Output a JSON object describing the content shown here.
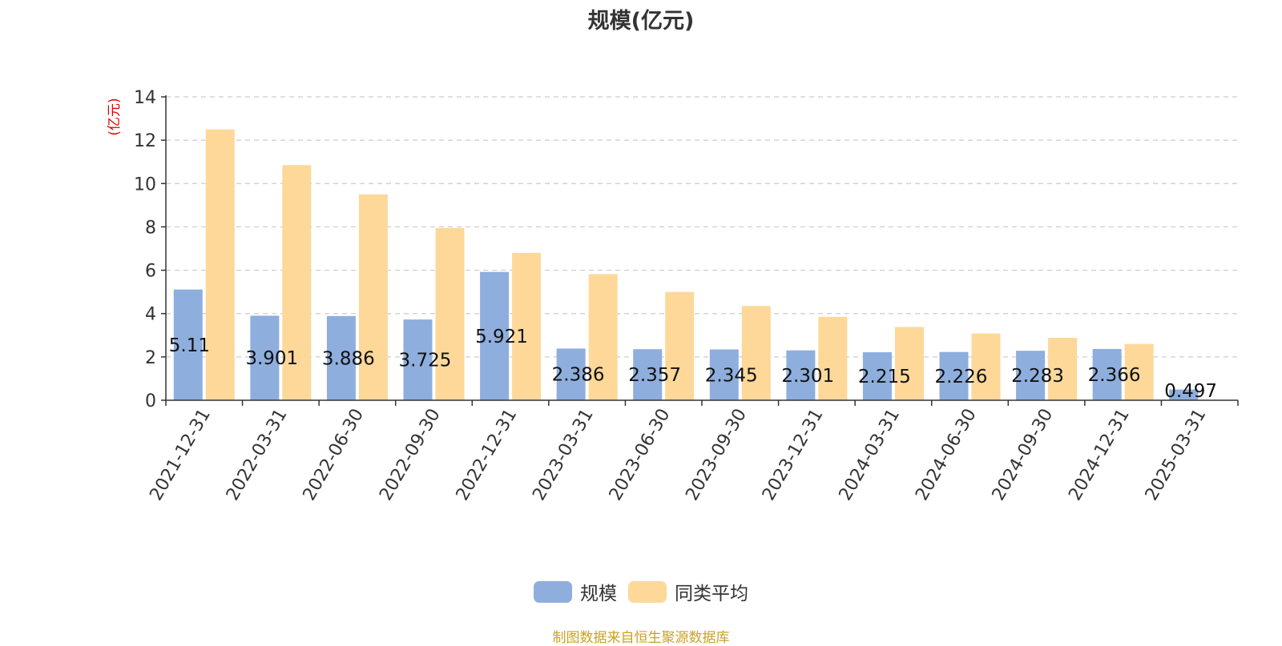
{
  "chart_data": {
    "type": "bar",
    "title": "规模(亿元)",
    "ylabel": "(亿元)",
    "ylim": [
      0,
      14
    ],
    "yticks": [
      0,
      2,
      4,
      6,
      8,
      10,
      12,
      14
    ],
    "grid": true,
    "legend_position": "bottom-center",
    "categories": [
      "2021-12-31",
      "2022-03-31",
      "2022-06-30",
      "2022-09-30",
      "2022-12-31",
      "2023-03-31",
      "2023-06-30",
      "2023-09-30",
      "2023-12-31",
      "2024-03-31",
      "2024-06-30",
      "2024-09-30",
      "2024-12-31",
      "2025-03-31"
    ],
    "series": [
      {
        "name": "规模",
        "color": "#8eaedd",
        "values": [
          5.11,
          3.901,
          3.886,
          3.725,
          5.921,
          2.386,
          2.357,
          2.345,
          2.301,
          2.215,
          2.226,
          2.283,
          2.366,
          0.497
        ],
        "labels": [
          "5.11",
          "3.901",
          "3.886",
          "3.725",
          "5.921",
          "2.386",
          "2.357",
          "2.345",
          "2.301",
          "2.215",
          "2.226",
          "2.283",
          "2.366",
          "0.497"
        ]
      },
      {
        "name": "同类平均",
        "color": "#fdd899",
        "values": [
          12.5,
          10.85,
          9.5,
          7.95,
          6.8,
          5.82,
          5.0,
          4.35,
          3.85,
          3.38,
          3.08,
          2.88,
          2.6,
          null
        ]
      }
    ]
  },
  "source_note": "制图数据来自恒生聚源数据库"
}
